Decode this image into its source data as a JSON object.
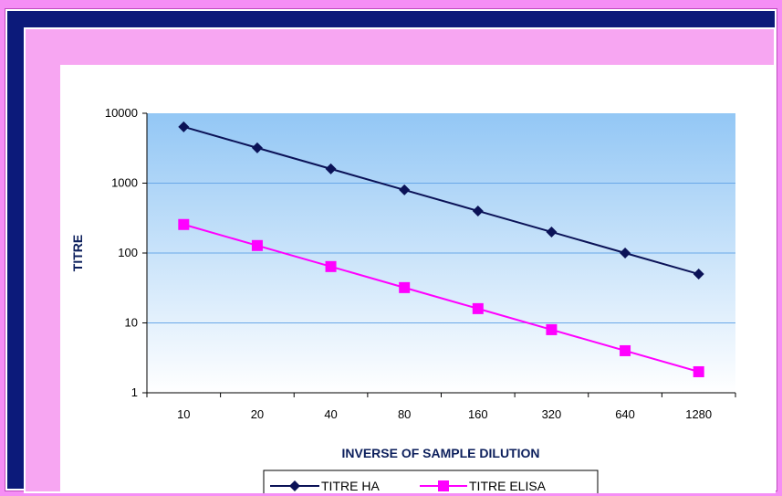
{
  "chart_data": {
    "type": "line",
    "categories": [
      "10",
      "20",
      "40",
      "80",
      "160",
      "320",
      "640",
      "1280"
    ],
    "series": [
      {
        "name": "TITRE HA",
        "values": [
          6400,
          3200,
          1600,
          800,
          400,
          200,
          100,
          50
        ],
        "color": "#0b1257",
        "marker": "diamond"
      },
      {
        "name": "TITRE ELISA",
        "values": [
          256,
          128,
          64,
          32,
          16,
          8,
          4,
          2
        ],
        "color": "#ff00ff",
        "marker": "square"
      }
    ],
    "xlabel": "INVERSE OF SAMPLE DILUTION",
    "ylabel": "TITRE",
    "yscale": "log",
    "ylim": [
      1,
      10000
    ],
    "yticks": [
      "1",
      "10",
      "100",
      "1000",
      "10000"
    ],
    "grid": true,
    "legend": "bottom"
  },
  "colors": {
    "page_background": "#f58ef5",
    "frame_dark": "#0c1a7a",
    "plot_gradient_top": "#93c7f5",
    "plot_gradient_bottom": "#ffffff"
  }
}
